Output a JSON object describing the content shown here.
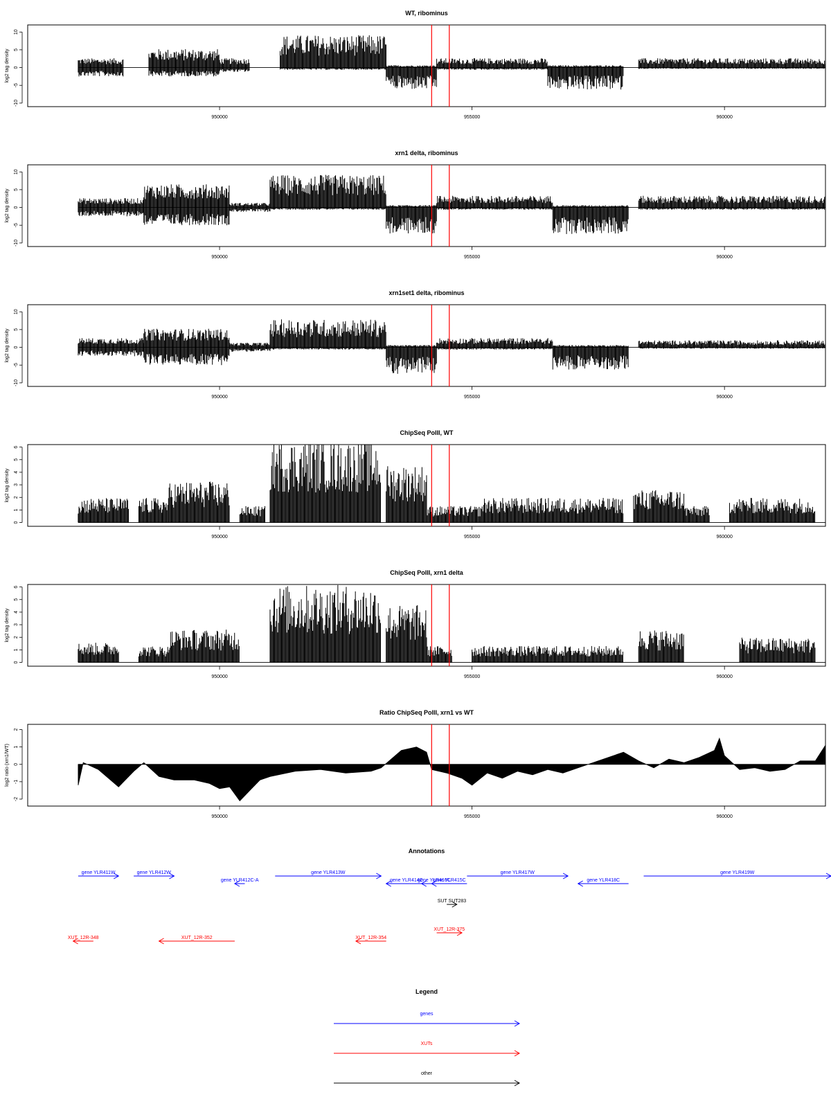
{
  "colors": {
    "ink": "#000000",
    "marker": "#ff0000",
    "gene": "#0000ff",
    "xut": "#ff0000",
    "other": "#000000",
    "frame": "#000000"
  },
  "axis": {
    "xlim": [
      946200,
      962000
    ],
    "x_ticks": [
      950000,
      955000,
      960000
    ],
    "x_tick_labels": [
      "950000",
      "955000",
      "960000"
    ]
  },
  "markers": {
    "x": [
      954200,
      954550
    ]
  },
  "chart_data": [
    {
      "type": "bar",
      "title": "WT, ribominus",
      "ylabel": "log2 tag density",
      "ylim": [
        -11,
        12
      ],
      "y_ticks": [
        -10,
        -5,
        0,
        5,
        10
      ],
      "y_tick_labels": [
        "-10",
        "-5",
        "0",
        "5",
        "10"
      ],
      "segments": [
        {
          "x": [
            947200,
            948100
          ],
          "plus": 2,
          "minus": 2
        },
        {
          "x": [
            948600,
            950000
          ],
          "plus": 4,
          "minus": 2
        },
        {
          "x": [
            950000,
            950600
          ],
          "plus": 2,
          "minus": 1
        },
        {
          "x": [
            951200,
            953300
          ],
          "plus": 7,
          "minus": 0.5
        },
        {
          "x": [
            953300,
            954300
          ],
          "plus": 0.5,
          "minus": 5
        },
        {
          "x": [
            954300,
            956500
          ],
          "plus": 2,
          "minus": 0.5
        },
        {
          "x": [
            956500,
            958000
          ],
          "plus": 0.5,
          "minus": 5
        },
        {
          "x": [
            958300,
            962000
          ],
          "plus": 2,
          "minus": 0.3
        }
      ]
    },
    {
      "type": "bar",
      "title": "xrn1 delta, ribominus",
      "ylabel": "log2 tag density",
      "ylim": [
        -11,
        12
      ],
      "y_ticks": [
        -10,
        -5,
        0,
        5,
        10
      ],
      "y_tick_labels": [
        "-10",
        "-5",
        "0",
        "5",
        "10"
      ],
      "segments": [
        {
          "x": [
            947200,
            948500
          ],
          "plus": 2,
          "minus": 2
        },
        {
          "x": [
            948500,
            950200
          ],
          "plus": 5,
          "minus": 4
        },
        {
          "x": [
            950200,
            951000
          ],
          "plus": 1,
          "minus": 1
        },
        {
          "x": [
            951000,
            953300
          ],
          "plus": 7,
          "minus": 0.5
        },
        {
          "x": [
            953300,
            954300
          ],
          "plus": 0.5,
          "minus": 6
        },
        {
          "x": [
            954300,
            956600
          ],
          "plus": 2.5,
          "minus": 0.5
        },
        {
          "x": [
            956600,
            958100
          ],
          "plus": 0.5,
          "minus": 6
        },
        {
          "x": [
            958300,
            962000
          ],
          "plus": 2.5,
          "minus": 0.5
        }
      ]
    },
    {
      "type": "bar",
      "title": "xrn1set1 delta, ribominus",
      "ylabel": "log2 tag density",
      "ylim": [
        -11,
        12
      ],
      "y_ticks": [
        -10,
        -5,
        0,
        5,
        10
      ],
      "y_tick_labels": [
        "-10",
        "-5",
        "0",
        "5",
        "10"
      ],
      "segments": [
        {
          "x": [
            947200,
            948500
          ],
          "plus": 2,
          "minus": 2
        },
        {
          "x": [
            948500,
            950200
          ],
          "plus": 4,
          "minus": 4
        },
        {
          "x": [
            950200,
            951000
          ],
          "plus": 1,
          "minus": 1
        },
        {
          "x": [
            951000,
            953300
          ],
          "plus": 6,
          "minus": 0.5
        },
        {
          "x": [
            953300,
            954300
          ],
          "plus": 0.5,
          "minus": 6
        },
        {
          "x": [
            954300,
            956600
          ],
          "plus": 2,
          "minus": 0.5
        },
        {
          "x": [
            956600,
            958100
          ],
          "plus": 0.5,
          "minus": 5
        },
        {
          "x": [
            958300,
            962000
          ],
          "plus": 1.5,
          "minus": 0.3
        }
      ]
    },
    {
      "type": "bar",
      "title": "ChipSeq PolII, WT",
      "ylabel": "log2 tag density",
      "ylim": [
        -0.3,
        6.2
      ],
      "y_ticks": [
        0,
        1,
        2,
        3,
        4,
        5,
        6
      ],
      "y_tick_labels": [
        "0",
        "1",
        "2",
        "3",
        "4",
        "5",
        "6"
      ],
      "segments": [
        {
          "x": [
            947200,
            948200
          ],
          "plus": 1.5
        },
        {
          "x": [
            948400,
            949000
          ],
          "plus": 1.5
        },
        {
          "x": [
            949000,
            950200
          ],
          "plus": 2.5
        },
        {
          "x": [
            950400,
            950900
          ],
          "plus": 1
        },
        {
          "x": [
            951000,
            953200
          ],
          "plus": 5
        },
        {
          "x": [
            953300,
            954100
          ],
          "plus": 3.5
        },
        {
          "x": [
            954100,
            955200
          ],
          "plus": 1
        },
        {
          "x": [
            955200,
            958000
          ],
          "plus": 1.5
        },
        {
          "x": [
            958200,
            959200
          ],
          "plus": 2
        },
        {
          "x": [
            959200,
            959700
          ],
          "plus": 1
        },
        {
          "x": [
            960100,
            961800
          ],
          "plus": 1.5
        }
      ]
    },
    {
      "type": "bar",
      "title": "ChipSeq PolII, xrn1 delta",
      "ylabel": "log2 tag density",
      "ylim": [
        -0.3,
        6.2
      ],
      "y_ticks": [
        0,
        1,
        2,
        3,
        4,
        5,
        6
      ],
      "y_tick_labels": [
        "0",
        "1",
        "2",
        "3",
        "4",
        "5",
        "6"
      ],
      "segments": [
        {
          "x": [
            947200,
            948000
          ],
          "plus": 1.2
        },
        {
          "x": [
            948400,
            949000
          ],
          "plus": 1
        },
        {
          "x": [
            949000,
            950400
          ],
          "plus": 2
        },
        {
          "x": [
            951000,
            953200
          ],
          "plus": 4.7
        },
        {
          "x": [
            953300,
            954100
          ],
          "plus": 3.5
        },
        {
          "x": [
            954100,
            954600
          ],
          "plus": 1
        },
        {
          "x": [
            955000,
            958000
          ],
          "plus": 1
        },
        {
          "x": [
            958300,
            959200
          ],
          "plus": 2
        },
        {
          "x": [
            960300,
            961800
          ],
          "plus": 1.5
        }
      ]
    },
    {
      "type": "area",
      "title": "Ratio ChipSeq PolII, xrn1 vs WT",
      "ylabel": "log2 ratio (xrn1/WT)",
      "ylim": [
        -2.4,
        2.3
      ],
      "y_ticks": [
        -2,
        -1,
        0,
        1,
        2
      ],
      "y_tick_labels": [
        "-2",
        "-1",
        "0",
        "1",
        "2"
      ],
      "x": [
        947200,
        947300,
        947600,
        948000,
        948300,
        948500,
        948800,
        949100,
        949500,
        949800,
        950000,
        950200,
        950400,
        950600,
        950800,
        951000,
        951500,
        952000,
        952500,
        953000,
        953200,
        953400,
        953600,
        953900,
        954100,
        954200,
        954500,
        954800,
        955000,
        955300,
        955600,
        955900,
        956200,
        956500,
        956800,
        957100,
        957400,
        957700,
        958000,
        958300,
        958600,
        958900,
        959200,
        959500,
        959800,
        959900,
        960000,
        960300,
        960600,
        960900,
        961200,
        961500,
        961800,
        962000
      ],
      "y": [
        -1.2,
        0.1,
        -0.3,
        -1.3,
        -0.4,
        0.1,
        -0.7,
        -0.9,
        -0.9,
        -1.1,
        -1.4,
        -1.3,
        -2.1,
        -1.5,
        -0.9,
        -0.7,
        -0.4,
        -0.3,
        -0.5,
        -0.4,
        -0.2,
        0.3,
        0.8,
        1.0,
        0.7,
        -0.3,
        -0.5,
        -0.8,
        -1.2,
        -0.5,
        -0.8,
        -0.4,
        -0.6,
        -0.3,
        -0.5,
        -0.2,
        0.1,
        0.4,
        0.7,
        0.2,
        -0.2,
        0.3,
        0.1,
        0.4,
        0.8,
        1.5,
        0.5,
        -0.3,
        -0.2,
        -0.4,
        -0.3,
        0.2,
        0.2,
        1.1
      ]
    }
  ],
  "annotations": {
    "title": "Annotations",
    "genes": [
      {
        "label": "gene YLR411W",
        "x": [
          947200,
          948000
        ],
        "dir": "right",
        "row": 1
      },
      {
        "label": "gene YLR412W",
        "x": [
          948300,
          949100
        ],
        "dir": "right",
        "row": 1
      },
      {
        "label": "gene YLR412C-A",
        "x": [
          950300,
          950500
        ],
        "dir": "left",
        "row": 2
      },
      {
        "label": "gene YLR413W",
        "x": [
          951100,
          953200
        ],
        "dir": "right",
        "row": 1
      },
      {
        "label": "gene YLR414C",
        "x": [
          953300,
          954100
        ],
        "dir": "left",
        "row": 2
      },
      {
        "label": "gene YLR415C",
        "x": [
          954200,
          954900
        ],
        "dir": "left",
        "row": 2
      },
      {
        "label": "gene YLR416C",
        "x": [
          954000,
          954500
        ],
        "dir": "left",
        "row": 2
      },
      {
        "label": "gene YLR417W",
        "x": [
          954900,
          956900
        ],
        "dir": "right",
        "row": 1
      },
      {
        "label": "gene YLR418C",
        "x": [
          957100,
          958100
        ],
        "dir": "left",
        "row": 2
      },
      {
        "label": "gene YLR419W",
        "x": [
          958400,
          962400
        ],
        "dir": "right",
        "row": 1
      }
    ],
    "others": [
      {
        "label": "SUT SUT283",
        "x": [
          954500,
          954700
        ],
        "dir": "right",
        "row": 3
      }
    ],
    "xuts": [
      {
        "label": "XUT_12R-348",
        "x": [
          947100,
          947500
        ],
        "dir": "left",
        "row": 5
      },
      {
        "label": "XUT_12R-352",
        "x": [
          948800,
          950300
        ],
        "dir": "left",
        "row": 5
      },
      {
        "label": "XUT_12R-354",
        "x": [
          952700,
          953300
        ],
        "dir": "left",
        "row": 5
      },
      {
        "label": "XUT_12R-375",
        "x": [
          954300,
          954800
        ],
        "dir": "right",
        "row": 4
      }
    ]
  },
  "legend": {
    "title": "Legend",
    "items": [
      {
        "label": "genes",
        "kind": "gene"
      },
      {
        "label": "XUTs",
        "kind": "xut"
      },
      {
        "label": "other",
        "kind": "other"
      }
    ]
  }
}
